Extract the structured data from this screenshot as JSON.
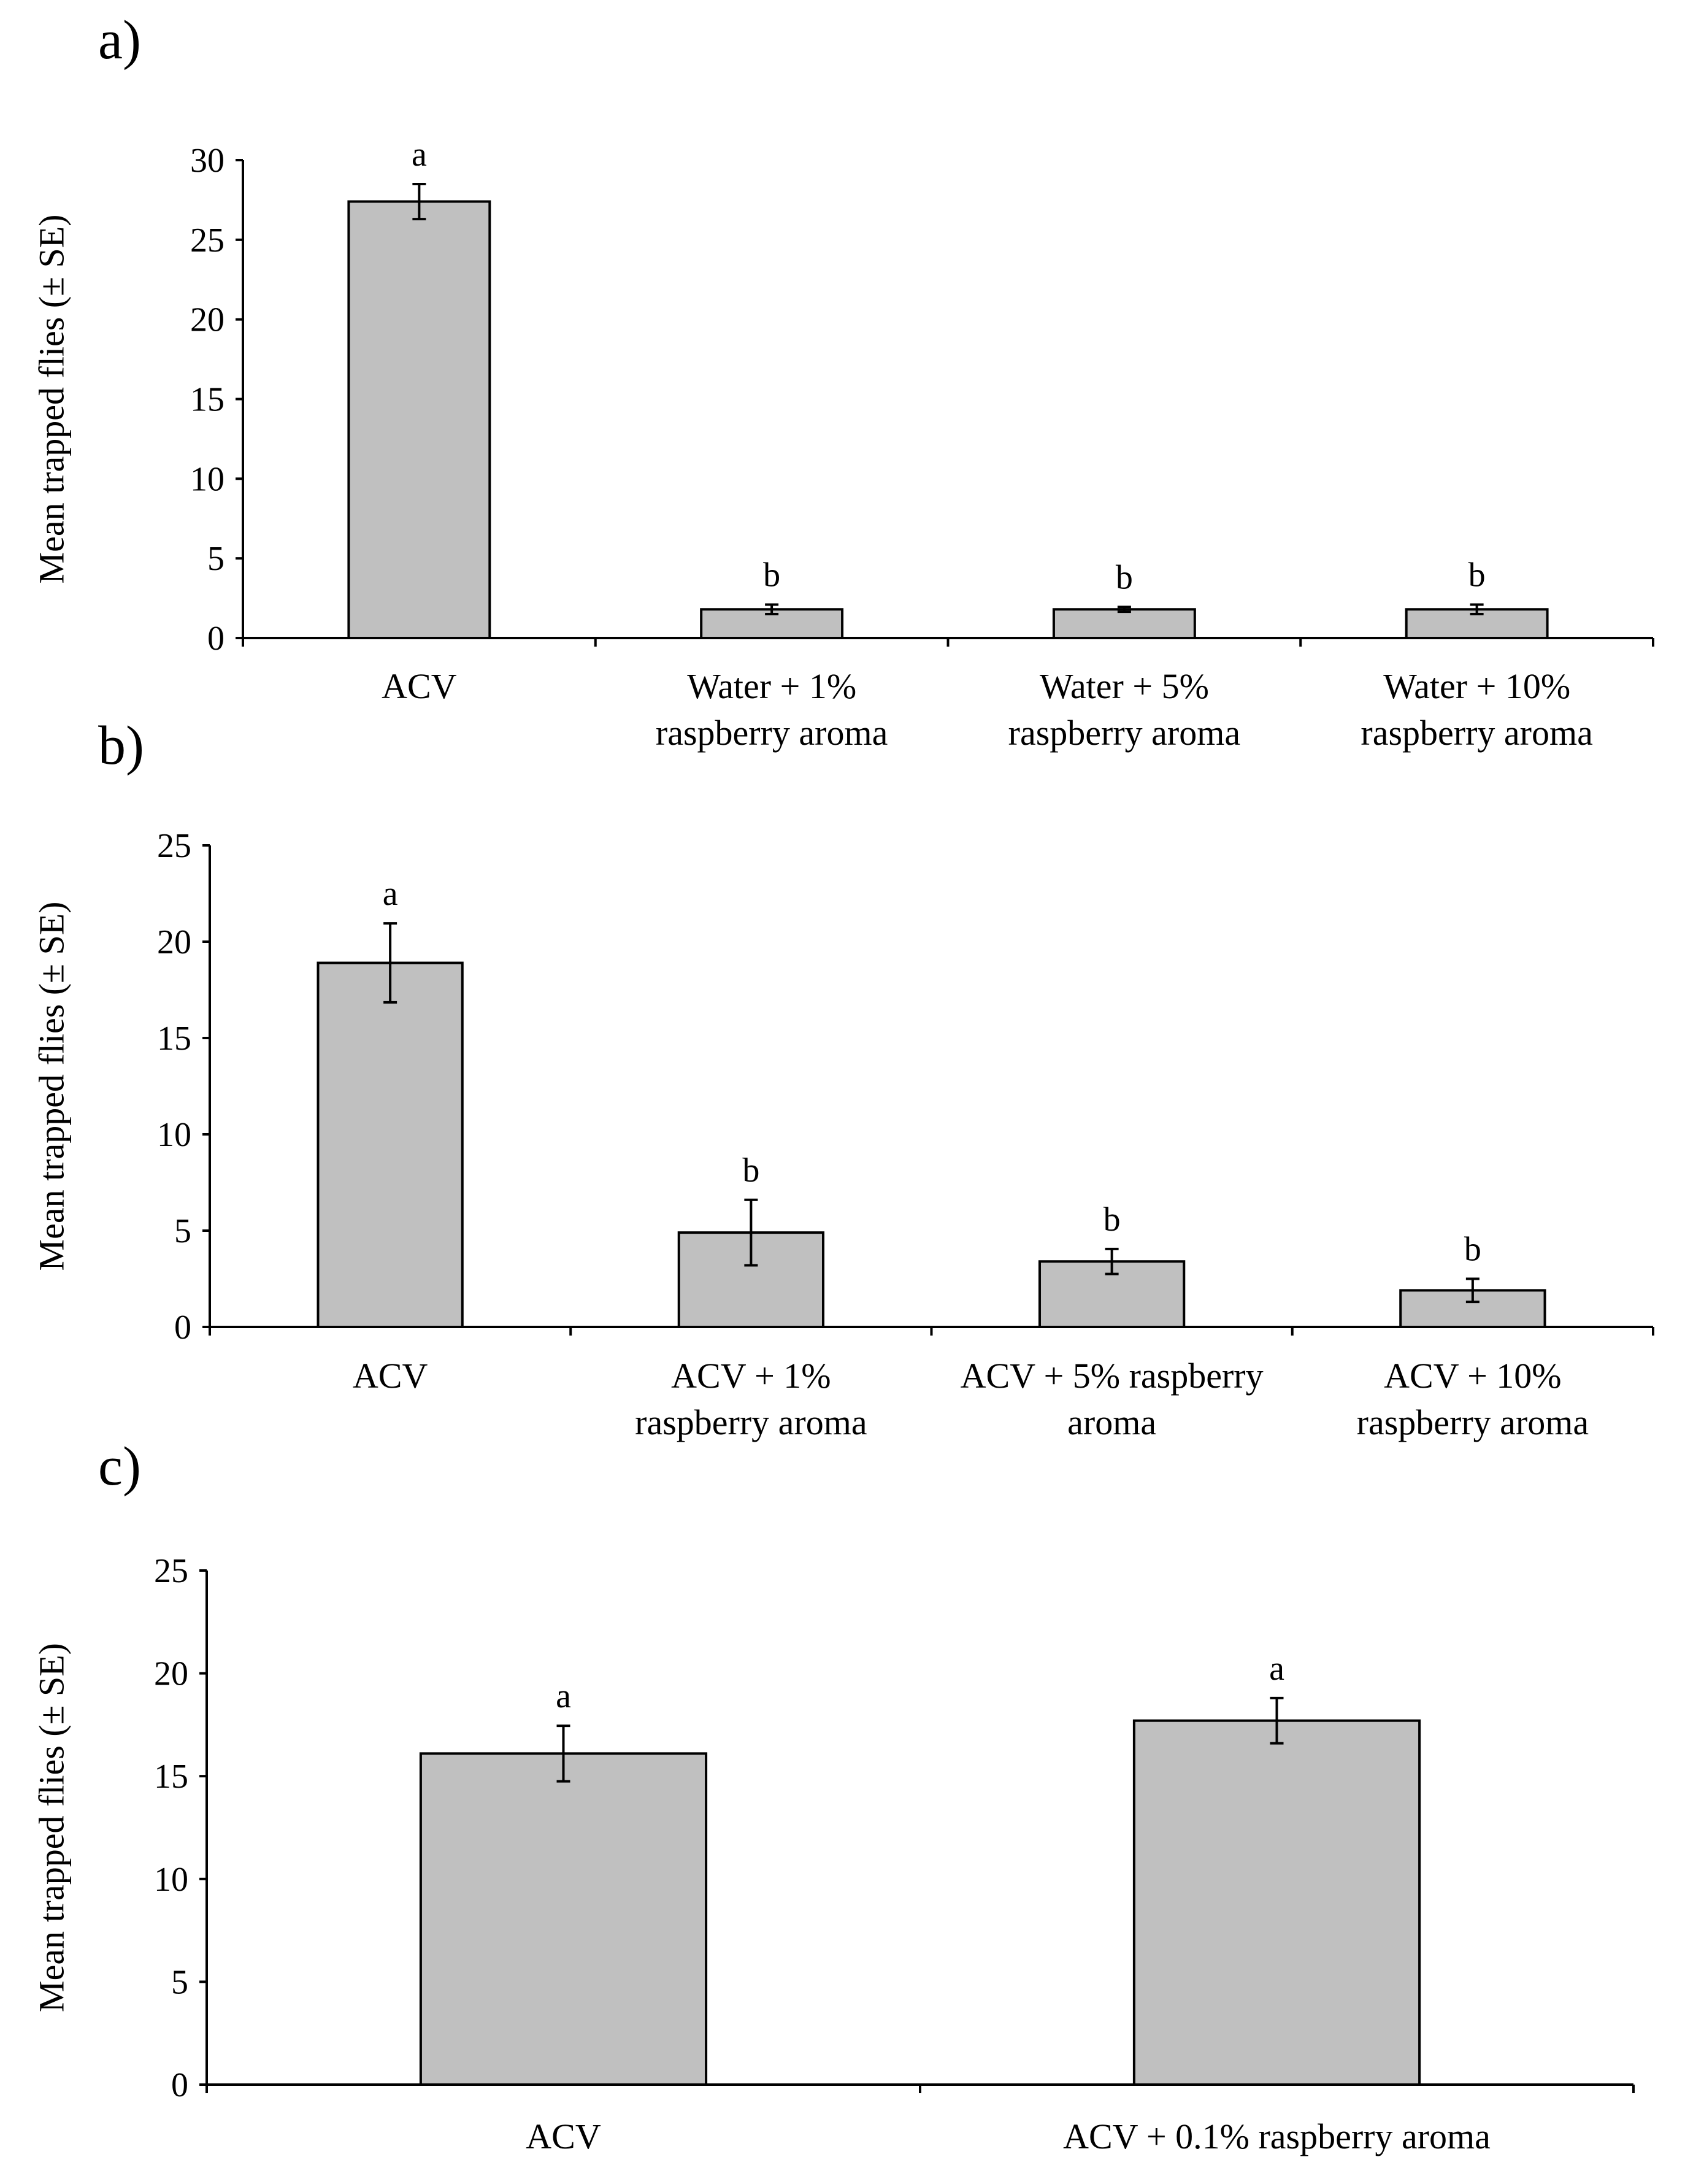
{
  "chart_data": [
    {
      "type": "bar",
      "panel_label": "a)",
      "ylabel": "Mean trapped  flies (± SE)",
      "ylim": [
        0,
        30
      ],
      "yticks": [
        0,
        5,
        10,
        15,
        20,
        25,
        30
      ],
      "categories": [
        [
          "ACV"
        ],
        [
          "Water + 1%",
          "raspberry aroma"
        ],
        [
          "Water + 5%",
          "raspberry aroma"
        ],
        [
          "Water + 10%",
          "raspberry aroma"
        ]
      ],
      "values": [
        27.4,
        1.8,
        1.8,
        1.8
      ],
      "errors": [
        1.1,
        0.3,
        0.15,
        0.3
      ],
      "significance": [
        "a",
        "b",
        "b",
        "b"
      ]
    },
    {
      "type": "bar",
      "panel_label": "b)",
      "ylabel": "Mean trapped  flies (± SE)",
      "ylim": [
        0,
        25
      ],
      "yticks": [
        0,
        5,
        10,
        15,
        20,
        25
      ],
      "categories": [
        [
          "ACV"
        ],
        [
          "ACV + 1%",
          "raspberry aroma"
        ],
        [
          "ACV + 5% raspberry",
          "aroma"
        ],
        [
          "ACV + 10%",
          "raspberry aroma"
        ]
      ],
      "values": [
        18.9,
        4.9,
        3.4,
        1.9
      ],
      "errors": [
        2.05,
        1.7,
        0.65,
        0.6
      ],
      "significance": [
        "a",
        "b",
        "b",
        "b"
      ]
    },
    {
      "type": "bar",
      "panel_label": "c)",
      "ylabel": "Mean trapped  flies (± SE)",
      "ylim": [
        0,
        25
      ],
      "yticks": [
        0,
        5,
        10,
        15,
        20,
        25
      ],
      "categories": [
        [
          "ACV"
        ],
        [
          "ACV + 0.1% raspberry aroma"
        ]
      ],
      "values": [
        16.1,
        17.7
      ],
      "errors": [
        1.35,
        1.1
      ],
      "significance": [
        "a",
        "a"
      ]
    }
  ]
}
